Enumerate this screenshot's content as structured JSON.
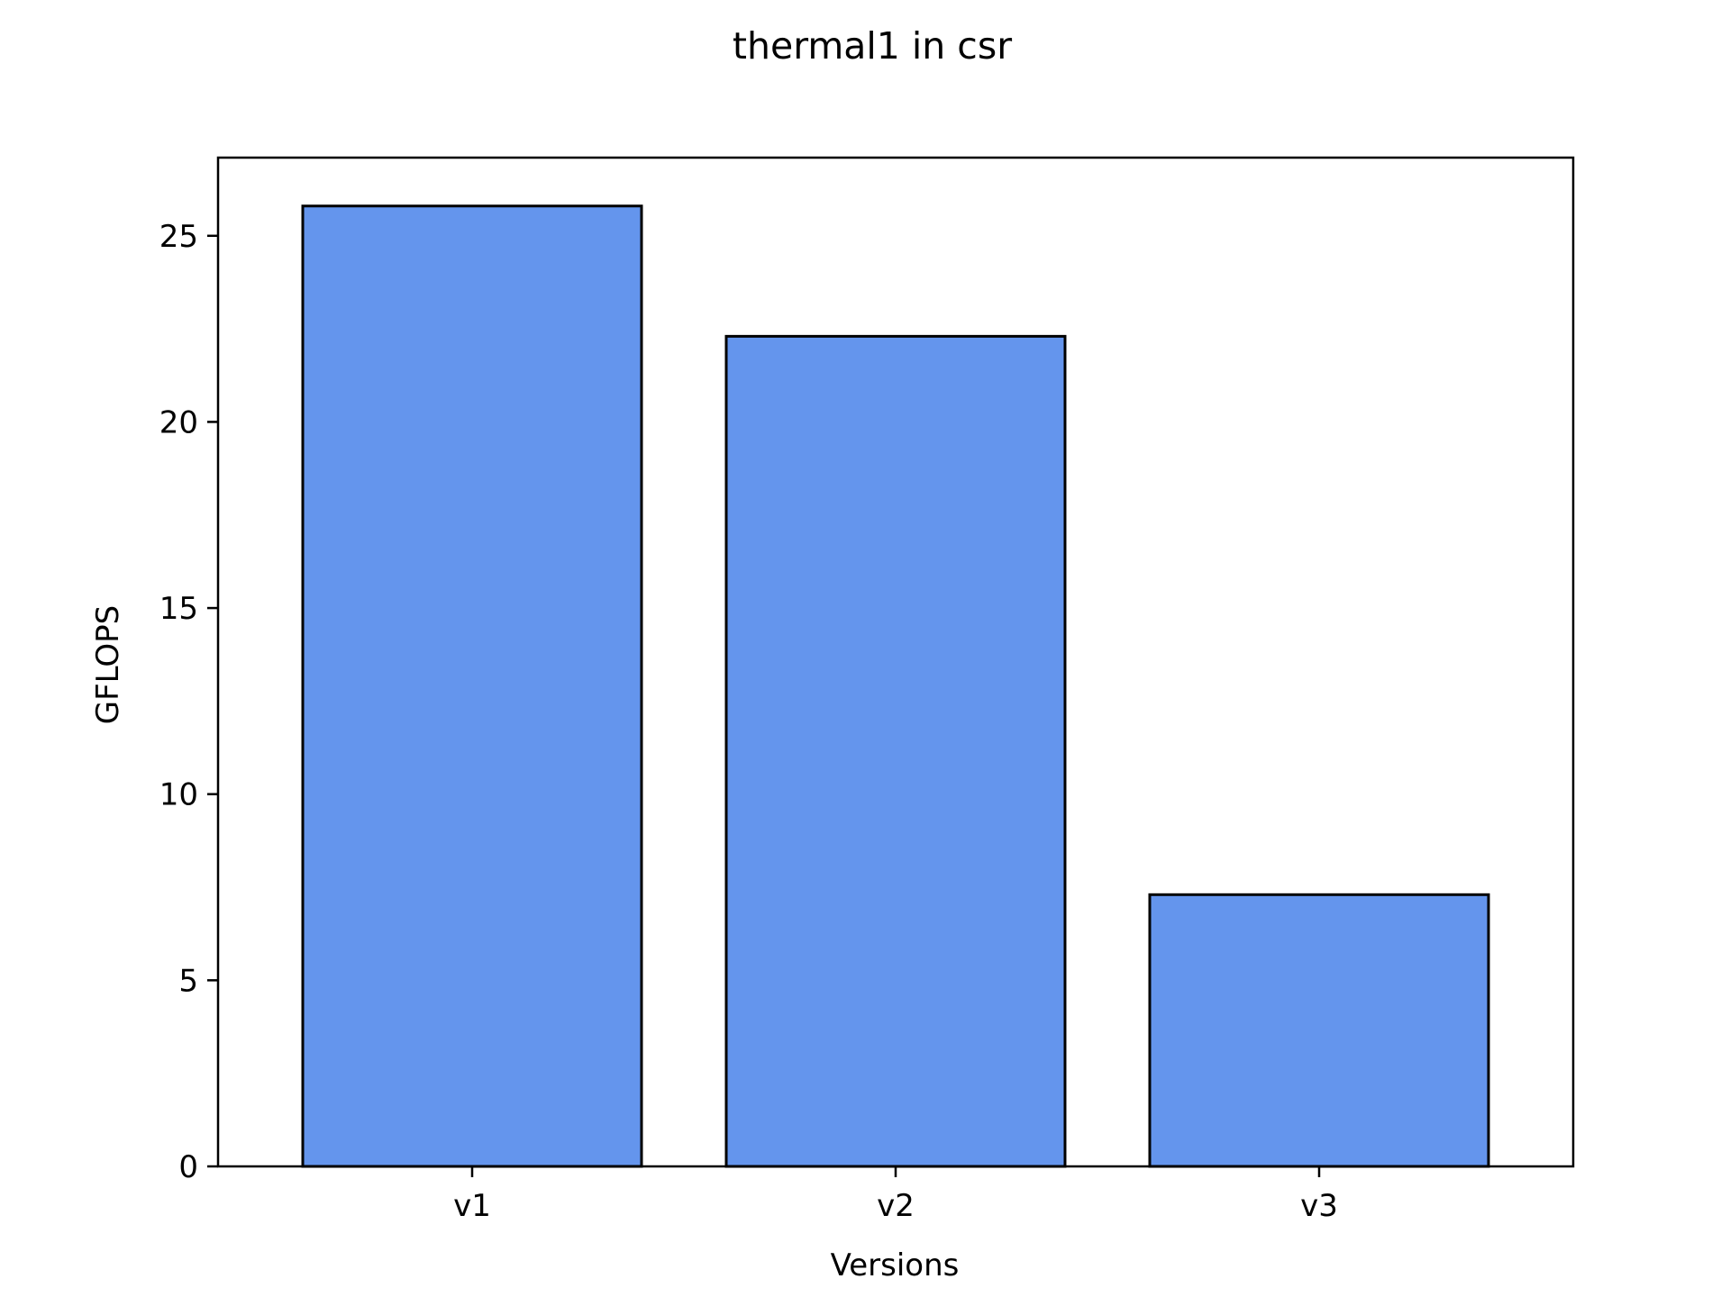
{
  "chart_data": {
    "type": "bar",
    "title": "thermal1 in csr",
    "xlabel": "Versions",
    "ylabel": "GFLOPS",
    "categories": [
      "v1",
      "v2",
      "v3"
    ],
    "values": [
      25.8,
      22.3,
      7.3
    ],
    "ylim": [
      0,
      27.1
    ],
    "yticks": [
      0,
      5,
      10,
      15,
      20,
      25
    ],
    "grid": false,
    "legend": "none",
    "colors": {
      "bar_fill": "#6495ED",
      "bar_edge": "#000000",
      "axis": "#000000",
      "background": "#ffffff"
    }
  }
}
